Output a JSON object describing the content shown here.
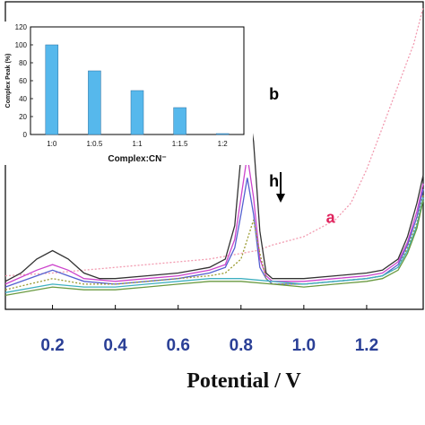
{
  "chart_data": [
    {
      "type": "line",
      "title": "",
      "xlabel": "Potential / V",
      "ylabel": "",
      "xlim": [
        0.05,
        1.38
      ],
      "ylim": [
        0,
        110
      ],
      "xticks": [
        "0.2",
        "0.4",
        "0.6",
        "0.8",
        "1.0",
        "1.2"
      ],
      "xtick_values": [
        0.2,
        0.4,
        0.6,
        0.8,
        1.0,
        1.2
      ],
      "grid": false,
      "annotations": [
        {
          "text": "b",
          "x": 0.905,
          "y": 75
        },
        {
          "text": "h",
          "x": 0.905,
          "y": 44
        },
        {
          "text": "a",
          "x": 1.085,
          "y": 31
        }
      ],
      "series": [
        {
          "color": "#f29bb0",
          "dashed": true,
          "x": [
            0.05,
            0.2,
            0.3,
            0.4,
            0.5,
            0.6,
            0.7,
            0.75,
            0.8,
            0.85,
            0.9,
            1.0,
            1.05,
            1.1,
            1.15,
            1.2,
            1.25,
            1.3,
            1.35,
            1.38
          ],
          "y": [
            12,
            13,
            14,
            15,
            16,
            17,
            18,
            19,
            20,
            21,
            23,
            26,
            29,
            32,
            38,
            50,
            65,
            80,
            95,
            108
          ]
        },
        {
          "color": "#333333",
          "x": [
            0.05,
            0.1,
            0.15,
            0.2,
            0.25,
            0.3,
            0.35,
            0.4,
            0.5,
            0.6,
            0.7,
            0.75,
            0.78,
            0.8,
            0.82,
            0.84,
            0.86,
            0.88,
            0.9,
            1.0,
            1.1,
            1.2,
            1.25,
            1.3,
            1.33,
            1.36,
            1.38
          ],
          "y": [
            10,
            13,
            18,
            21,
            18,
            13,
            11,
            11,
            12,
            13,
            15,
            18,
            30,
            55,
            75,
            60,
            28,
            13,
            11,
            11,
            12,
            13,
            14,
            18,
            26,
            38,
            48
          ]
        },
        {
          "color": "#cc44cc",
          "x": [
            0.05,
            0.15,
            0.2,
            0.25,
            0.3,
            0.4,
            0.5,
            0.6,
            0.7,
            0.75,
            0.78,
            0.8,
            0.82,
            0.84,
            0.86,
            0.88,
            0.9,
            1.0,
            1.1,
            1.2,
            1.25,
            1.3,
            1.33,
            1.36,
            1.38
          ],
          "y": [
            9,
            14,
            16,
            14,
            11,
            10,
            11,
            12,
            14,
            16,
            25,
            40,
            55,
            40,
            18,
            12,
            10,
            10,
            11,
            12,
            13,
            17,
            24,
            35,
            45
          ]
        },
        {
          "color": "#5560d0",
          "x": [
            0.05,
            0.15,
            0.2,
            0.25,
            0.3,
            0.4,
            0.5,
            0.6,
            0.7,
            0.75,
            0.78,
            0.8,
            0.82,
            0.84,
            0.86,
            0.88,
            0.9,
            1.0,
            1.1,
            1.2,
            1.25,
            1.3,
            1.33,
            1.36,
            1.38
          ],
          "y": [
            8,
            12,
            14,
            12,
            10,
            9,
            10,
            11,
            13,
            15,
            22,
            34,
            47,
            34,
            15,
            11,
            9,
            9,
            10,
            11,
            12,
            16,
            23,
            33,
            43
          ]
        },
        {
          "color": "#9a9a30",
          "dashed": true,
          "x": [
            0.05,
            0.2,
            0.3,
            0.4,
            0.5,
            0.6,
            0.7,
            0.75,
            0.8,
            0.82,
            0.84,
            0.86,
            0.88,
            0.9,
            1.0,
            1.1,
            1.2,
            1.25,
            1.3,
            1.33,
            1.36,
            1.38
          ],
          "y": [
            7,
            11,
            9,
            9,
            10,
            11,
            12,
            13,
            18,
            25,
            32,
            20,
            11,
            9,
            9,
            10,
            11,
            12,
            15,
            22,
            31,
            41
          ]
        },
        {
          "color": "#40b0c0",
          "x": [
            0.05,
            0.2,
            0.3,
            0.4,
            0.5,
            0.6,
            0.7,
            0.8,
            0.9,
            1.0,
            1.1,
            1.2,
            1.25,
            1.3,
            1.33,
            1.36,
            1.38
          ],
          "y": [
            6,
            9,
            8,
            8,
            9,
            10,
            11,
            11,
            10,
            9,
            10,
            11,
            12,
            15,
            21,
            30,
            40
          ]
        },
        {
          "color": "#6a9a40",
          "x": [
            0.05,
            0.2,
            0.3,
            0.4,
            0.5,
            0.6,
            0.7,
            0.8,
            0.9,
            1.0,
            1.1,
            1.2,
            1.25,
            1.3,
            1.33,
            1.36,
            1.38
          ],
          "y": [
            5,
            8,
            7,
            7,
            8,
            9,
            10,
            10,
            9,
            8,
            9,
            10,
            11,
            14,
            20,
            29,
            39
          ]
        }
      ]
    },
    {
      "type": "bar",
      "title": "",
      "xlabel": "Complex:CN⁻",
      "ylabel": "Complex Peak (%)",
      "categories": [
        "1:0",
        "1:0.5",
        "1:1",
        "1:1.5",
        "1:2"
      ],
      "values": [
        100,
        71,
        49,
        30,
        1
      ],
      "ylim": [
        0,
        120
      ],
      "yticks": [
        "0",
        "20",
        "40",
        "60",
        "80",
        "100",
        "120"
      ],
      "bar_color": "#56b8ec"
    }
  ]
}
